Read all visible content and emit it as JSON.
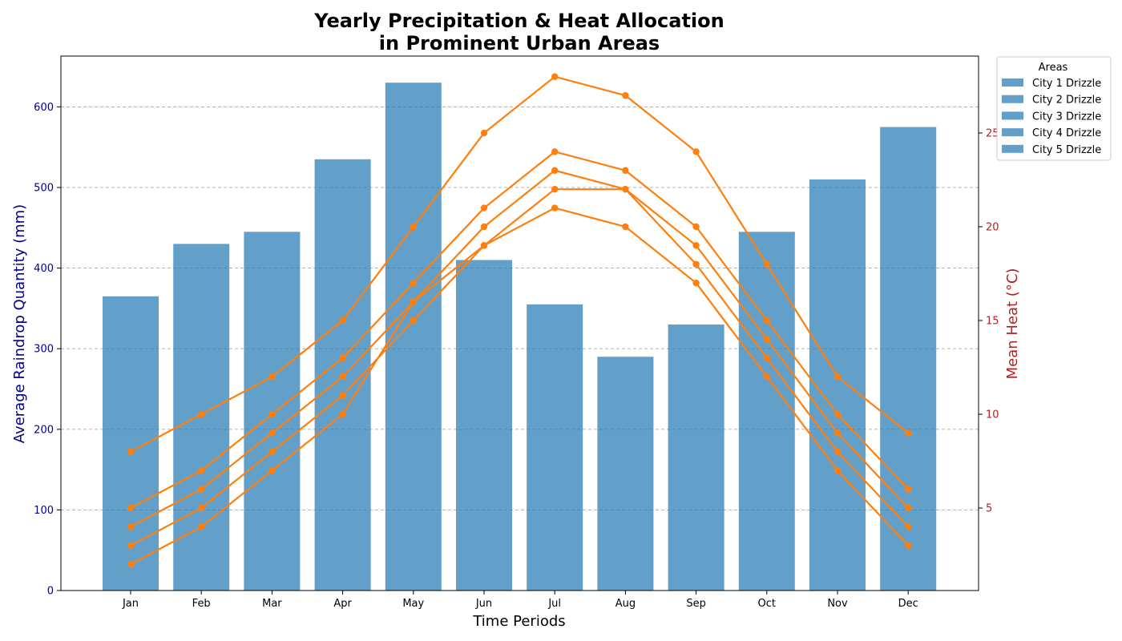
{
  "chart_data": {
    "type": "bar",
    "title_line1": "Yearly Precipitation & Heat Allocation",
    "title_line2": "in Prominent Urban Areas",
    "xlabel": "Time Periods",
    "ylabel_left": "Average Raindrop Quantity (mm)",
    "ylabel_right": "Mean Heat (°C)",
    "categories": [
      "Jan",
      "Feb",
      "Mar",
      "Apr",
      "May",
      "Jun",
      "Jul",
      "Aug",
      "Sep",
      "Oct",
      "Nov",
      "Dec"
    ],
    "ylim_left": [
      0,
      663
    ],
    "yticks_left": [
      0,
      100,
      200,
      300,
      400,
      500,
      600
    ],
    "ylim_right": [
      0.6,
      29.1
    ],
    "yticks_right": [
      5,
      10,
      15,
      20,
      25
    ],
    "grid": "horizontal dashed",
    "bar_color": "#1f77b4",
    "line_color": "#ff7f0e",
    "left_axis_color": "#00008b",
    "right_axis_color": "#b22222",
    "bar_series": [
      {
        "name": "City 1 Drizzle",
        "values": [
          0,
          0,
          0,
          0,
          0,
          0,
          0,
          0,
          0,
          0,
          0,
          0
        ]
      },
      {
        "name": "City 2 Drizzle",
        "values": [
          0,
          0,
          0,
          0,
          0,
          0,
          0,
          0,
          0,
          0,
          0,
          0
        ]
      },
      {
        "name": "City 3 Drizzle",
        "values": [
          0,
          0,
          0,
          0,
          0,
          0,
          0,
          0,
          0,
          0,
          0,
          0
        ]
      },
      {
        "name": "City 4 Drizzle",
        "values": [
          0,
          0,
          0,
          0,
          0,
          0,
          0,
          0,
          0,
          0,
          0,
          0
        ]
      },
      {
        "name": "City 5 Drizzle",
        "values": [
          365,
          430,
          445,
          535,
          630,
          410,
          355,
          290,
          330,
          445,
          510,
          575
        ]
      }
    ],
    "line_series": [
      {
        "values": [
          5,
          7,
          10,
          13,
          17,
          21,
          24,
          23,
          20,
          15,
          10,
          6
        ]
      },
      {
        "values": [
          8,
          10,
          12,
          15,
          20,
          25,
          28,
          27,
          24,
          18,
          12,
          9
        ]
      },
      {
        "values": [
          3,
          5,
          8,
          11,
          15,
          19,
          22,
          22,
          18,
          13,
          8,
          4
        ]
      },
      {
        "values": [
          4,
          6,
          9,
          12,
          16,
          20,
          23,
          22,
          19,
          14,
          9,
          5
        ]
      },
      {
        "values": [
          2,
          4,
          7,
          10,
          16,
          19,
          21,
          20,
          17,
          12,
          7,
          3
        ]
      }
    ],
    "legend": {
      "title": "Areas",
      "placement": "outside top-right",
      "entries": [
        "City 1 Drizzle",
        "City 2 Drizzle",
        "City 3 Drizzle",
        "City 4 Drizzle",
        "City 5 Drizzle"
      ]
    }
  }
}
